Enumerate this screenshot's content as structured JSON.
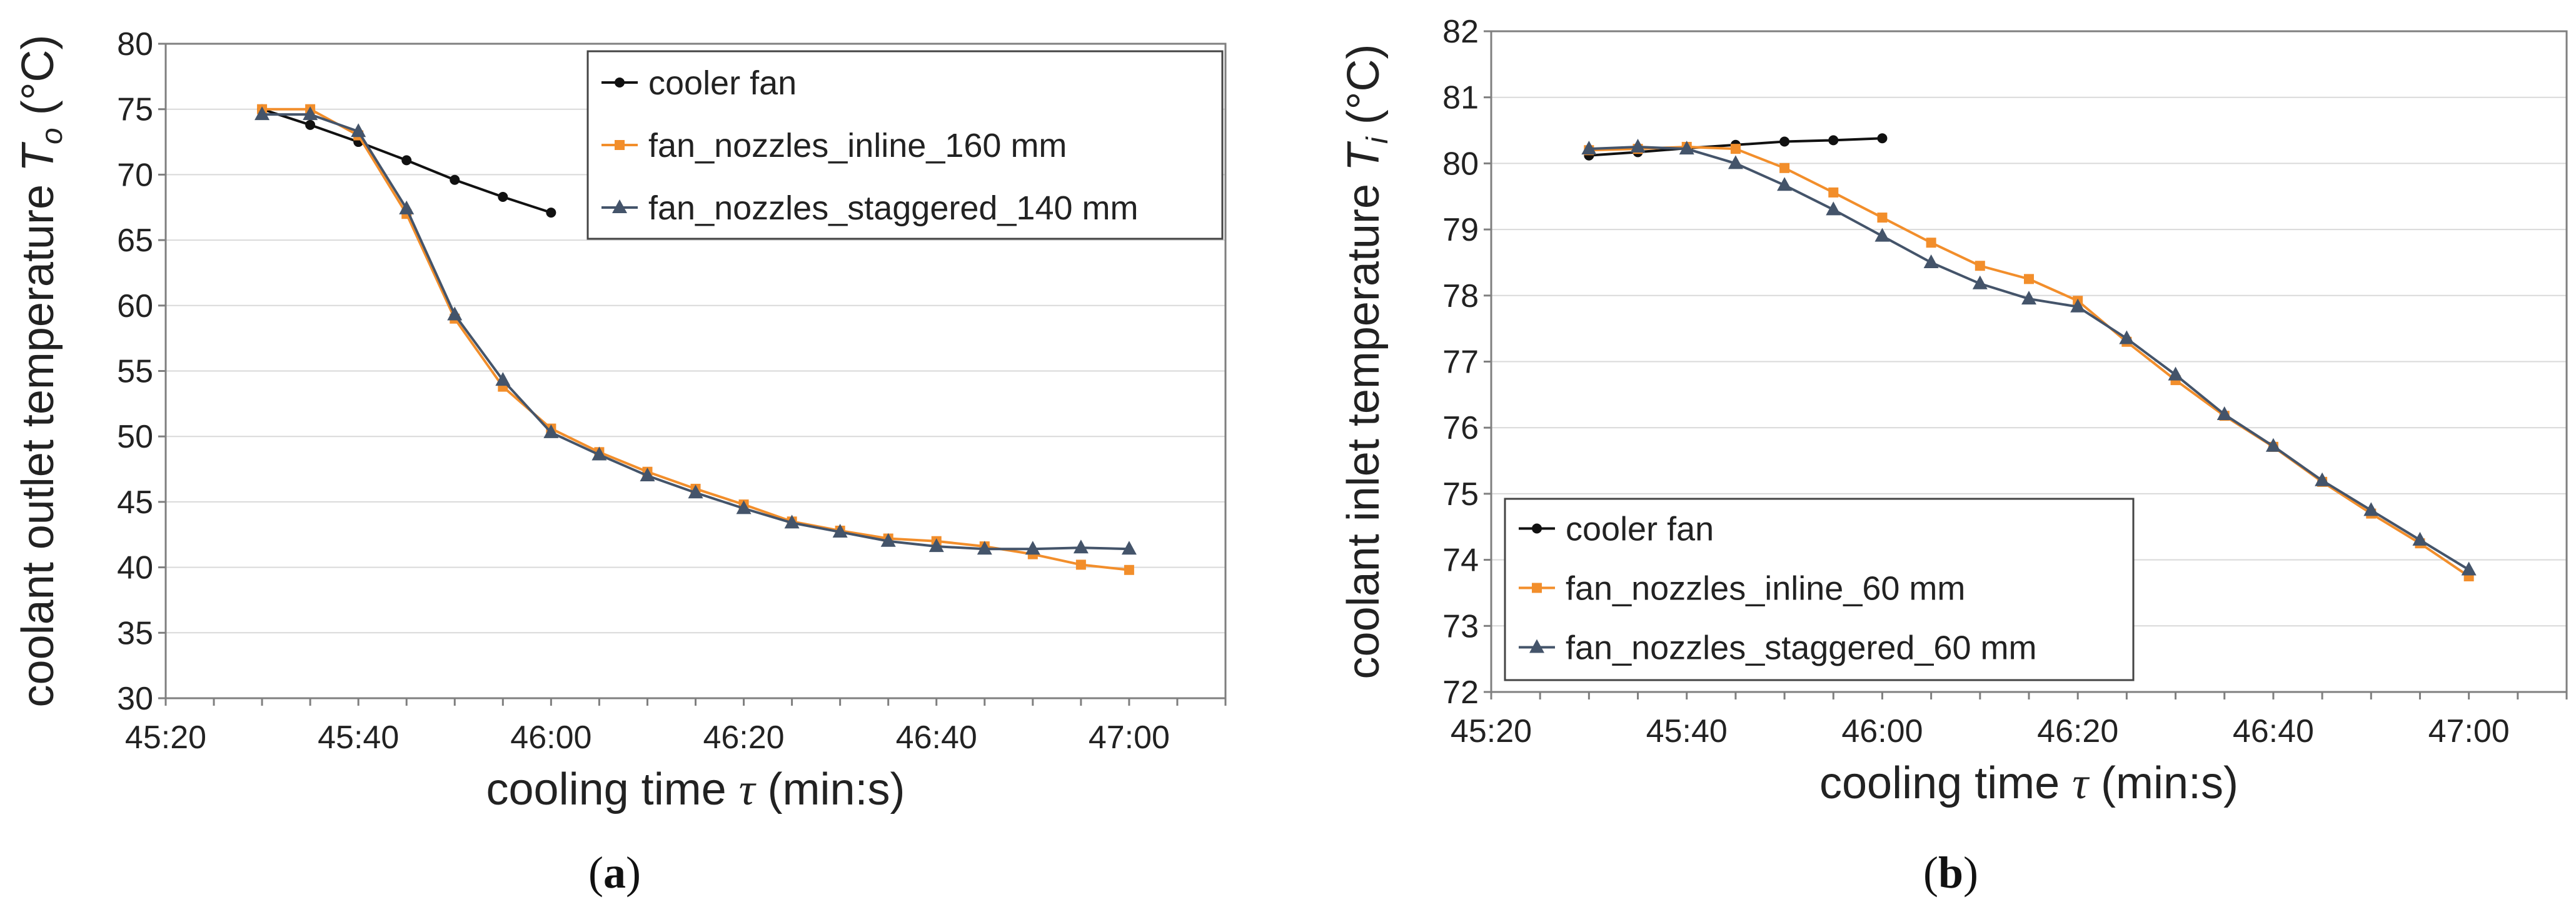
{
  "chart_data": [
    {
      "type": "line",
      "panel_label": "(a)",
      "xlabel": {
        "prefix": "cooling time ",
        "symbol": "τ",
        "suffix": " (min:s)"
      },
      "ylabel": {
        "prefix": "coolant outlet temperature ",
        "symbol": "T",
        "subscript": "o",
        "suffix": " (°C)"
      },
      "xlim": [
        2720,
        2830
      ],
      "ylim": [
        30,
        80
      ],
      "ystep": 5,
      "xticks": [
        2720,
        2740,
        2760,
        2780,
        2800,
        2820
      ],
      "xtick_labels": [
        "45:20",
        "45:40",
        "46:00",
        "46:20",
        "46:40",
        "47:00"
      ],
      "legend_position": "top-right",
      "grid": true,
      "series": [
        {
          "name": "cooler fan",
          "color": "#111111",
          "marker": "circle",
          "x": [
            2730,
            2735,
            2740,
            2745,
            2750,
            2755,
            2760
          ],
          "values": [
            75.0,
            73.8,
            72.5,
            71.1,
            69.6,
            68.3,
            67.1
          ]
        },
        {
          "name": "fan_nozzles_inline_160 mm",
          "color": "#f28e2b",
          "marker": "square",
          "x": [
            2730,
            2735,
            2740,
            2745,
            2750,
            2755,
            2760,
            2765,
            2770,
            2775,
            2780,
            2785,
            2790,
            2795,
            2800,
            2805,
            2810,
            2815,
            2820
          ],
          "values": [
            75.0,
            75.0,
            73.0,
            67.0,
            59.0,
            53.8,
            50.6,
            48.8,
            47.3,
            46.0,
            44.8,
            43.5,
            42.8,
            42.2,
            42.0,
            41.6,
            41.0,
            40.2,
            39.8
          ]
        },
        {
          "name": "fan_nozzles_staggered_140 mm",
          "color": "#44546a",
          "marker": "triangle",
          "x": [
            2730,
            2735,
            2740,
            2745,
            2750,
            2755,
            2760,
            2765,
            2770,
            2775,
            2780,
            2785,
            2790,
            2795,
            2800,
            2805,
            2810,
            2815,
            2820
          ],
          "values": [
            74.6,
            74.6,
            73.3,
            67.4,
            59.3,
            54.3,
            50.3,
            48.6,
            47.0,
            45.7,
            44.5,
            43.4,
            42.7,
            42.0,
            41.6,
            41.4,
            41.4,
            41.5,
            41.4
          ]
        }
      ]
    },
    {
      "type": "line",
      "panel_label": "(b)",
      "xlabel": {
        "prefix": "cooling time ",
        "symbol": "τ",
        "suffix": " (min:s)"
      },
      "ylabel": {
        "prefix": "coolant inlet temperature ",
        "symbol": "T",
        "subscript": "i",
        "suffix": " (°C)"
      },
      "xlim": [
        2720,
        2830
      ],
      "ylim": [
        72,
        82
      ],
      "ystep": 1,
      "xticks": [
        2720,
        2740,
        2760,
        2780,
        2800,
        2820
      ],
      "xtick_labels": [
        "45:20",
        "45:40",
        "46:00",
        "46:20",
        "46:40",
        "47:00"
      ],
      "legend_position": "bottom-left",
      "grid": true,
      "series": [
        {
          "name": "cooler fan",
          "color": "#111111",
          "marker": "circle",
          "x": [
            2730,
            2735,
            2740,
            2745,
            2750,
            2755,
            2760
          ],
          "values": [
            80.12,
            80.17,
            80.23,
            80.28,
            80.33,
            80.35,
            80.38
          ]
        },
        {
          "name": "fan_nozzles_inline_60 mm",
          "color": "#f28e2b",
          "marker": "square",
          "x": [
            2730,
            2735,
            2740,
            2745,
            2750,
            2755,
            2760,
            2765,
            2770,
            2775,
            2780,
            2785,
            2790,
            2795,
            2800,
            2805,
            2810,
            2815,
            2820
          ],
          "values": [
            80.2,
            80.22,
            80.25,
            80.22,
            79.93,
            79.56,
            79.18,
            78.8,
            78.45,
            78.25,
            77.92,
            77.3,
            76.72,
            76.18,
            75.71,
            75.18,
            74.7,
            74.25,
            73.75
          ]
        },
        {
          "name": "fan_nozzles_staggered_60 mm",
          "color": "#44546a",
          "marker": "triangle",
          "x": [
            2730,
            2735,
            2740,
            2745,
            2750,
            2755,
            2760,
            2765,
            2770,
            2775,
            2780,
            2785,
            2790,
            2795,
            2800,
            2805,
            2810,
            2815,
            2820
          ],
          "values": [
            80.22,
            80.25,
            80.22,
            80.0,
            79.67,
            79.3,
            78.9,
            78.5,
            78.18,
            77.95,
            77.83,
            77.35,
            76.8,
            76.2,
            75.72,
            75.2,
            74.75,
            74.3,
            73.85
          ]
        }
      ]
    }
  ]
}
